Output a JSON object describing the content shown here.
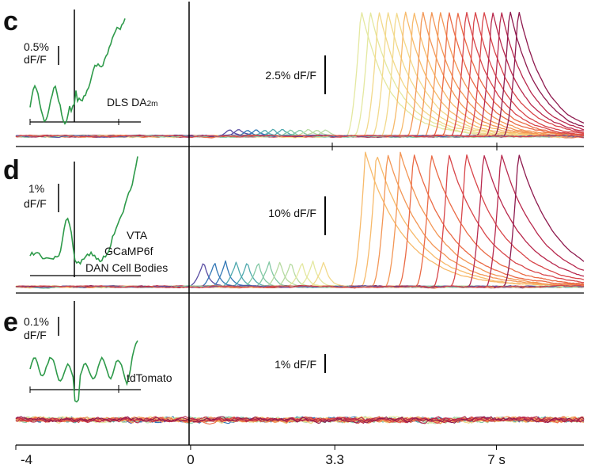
{
  "chart_data": [
    {
      "type": "line",
      "panel_label": "c",
      "scale_bar_label": "2.5% dF/F",
      "inset": {
        "scale_label_line1": "0.5%",
        "scale_label_line2": "dF/F",
        "label_main": "DLS DA",
        "label_sub": "2m"
      },
      "onset_times": [
        0.9,
        1.1,
        1.3,
        1.5,
        1.7,
        1.9,
        2.1,
        2.3,
        2.5,
        2.7,
        2.9,
        3.1
      ],
      "late_onset_times": [
        3.9,
        4.1,
        4.3,
        4.5,
        4.7,
        4.9,
        5.1,
        5.3,
        5.5,
        5.7,
        5.9,
        6.1,
        6.3,
        6.5,
        6.7,
        6.9,
        7.1,
        7.3,
        7.5
      ],
      "peak_small": 0.25,
      "peak_large": 4.6,
      "grid": false
    },
    {
      "type": "line",
      "panel_label": "d",
      "scale_bar_label": "10% dF/F",
      "inset": {
        "scale_label_line1": "1%",
        "scale_label_line2": "dF/F",
        "label_line1": "VTA",
        "label_line2": "GCaMP6f",
        "label_line3": "DAN Cell Bodies"
      },
      "onset_times": [
        0.3,
        0.55,
        0.8,
        1.05,
        1.3,
        1.55,
        1.8,
        2.05,
        2.3,
        2.55,
        2.8,
        3.05
      ],
      "late_onset_times": [
        4.0,
        4.25,
        4.5,
        4.8,
        5.1,
        5.5,
        5.9,
        6.3,
        6.7,
        7.1,
        7.5
      ],
      "peak_small": 1.0,
      "peak_large": 5.3,
      "grid": false
    },
    {
      "type": "line",
      "panel_label": "e",
      "scale_bar_label": "1% dF/F",
      "inset": {
        "scale_label_line1": "0.1%",
        "scale_label_line2": "dF/F",
        "label_main": "tdTomato"
      },
      "n_traces": 20,
      "noise_amplitude": 0.35,
      "grid": false
    }
  ],
  "x_axis": {
    "xlim": [
      -4,
      9
    ],
    "ticks": [
      {
        "value": -4,
        "label": "-4"
      },
      {
        "value": 0,
        "label": "0"
      },
      {
        "value": 3.3,
        "label": "3.3"
      },
      {
        "value": 7,
        "label": "7 s"
      }
    ]
  },
  "colors": {
    "inset_trace": "#2e9a4a",
    "axis": "#000000",
    "palette": [
      "#8e1a4e",
      "#b8294d",
      "#d8464a",
      "#ea6a45",
      "#f39655",
      "#f7ba6b",
      "#f2d98b",
      "#e4e8a0",
      "#b7dba2",
      "#83c8a4",
      "#4fa9ae",
      "#3378b6",
      "#5a4ea3"
    ]
  }
}
